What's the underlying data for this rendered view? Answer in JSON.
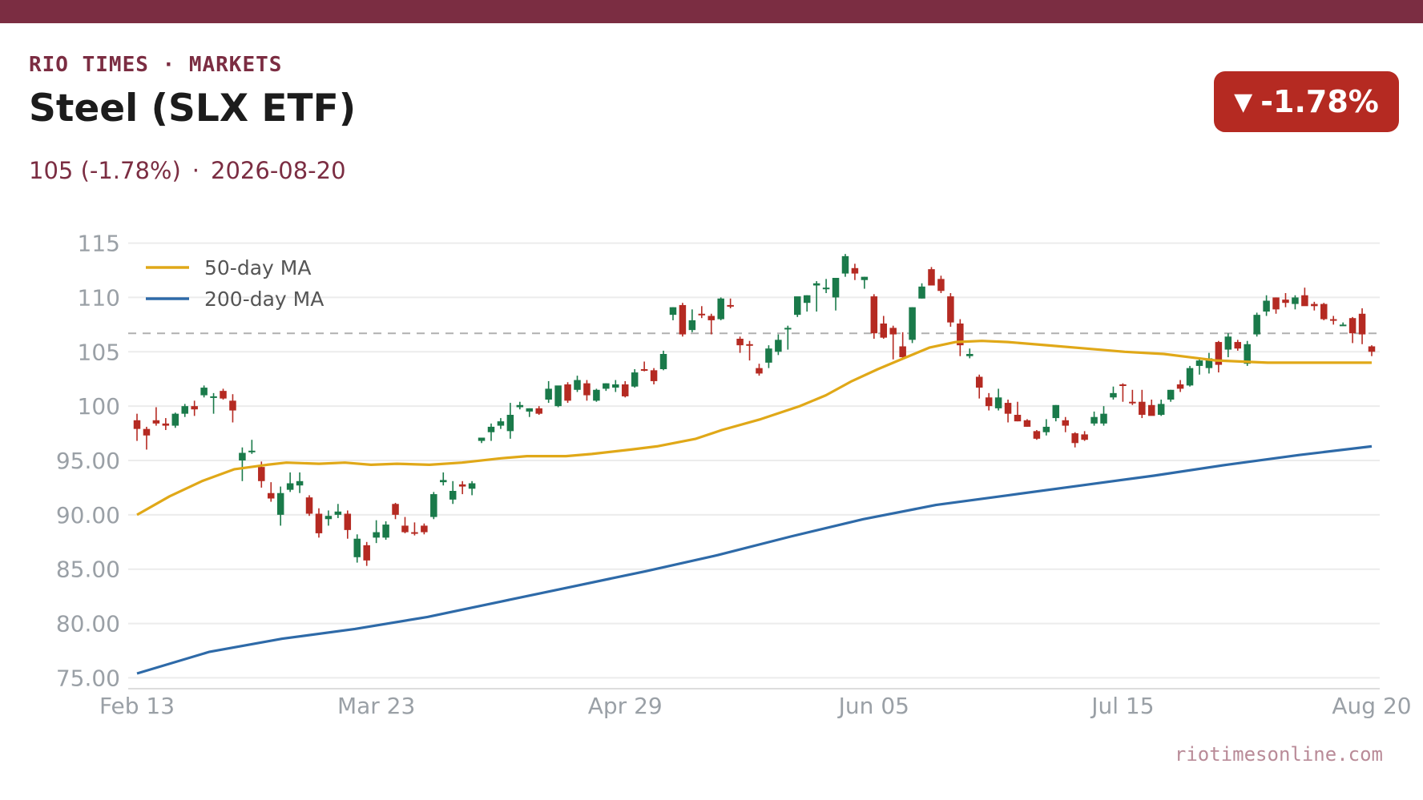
{
  "header": {
    "brand": "RIO TIMES · MARKETS",
    "title": "Steel (SLX ETF)",
    "price": "105 (-1.78%)",
    "separator": "·",
    "date": "2026-08-20",
    "change_badge": "-1.78%",
    "change_arrow": "▼"
  },
  "footer": {
    "source": "riotimesonline.com"
  },
  "colors": {
    "brand": "#7b2d42",
    "up": "#1a7a4a",
    "down": "#b52a22",
    "ma50": "#e0a818",
    "ma200": "#2e6aa8",
    "badge": "#b52a22"
  },
  "chart_data": {
    "type": "candlestick",
    "ylim": [
      74,
      116
    ],
    "y_ticks": [
      "75.00",
      "80.00",
      "85.00",
      "90.00",
      "95.00",
      "100",
      "105",
      "110",
      "115"
    ],
    "y_tick_values": [
      75,
      80,
      85,
      90,
      95,
      100,
      105,
      110,
      115
    ],
    "x_ticks": [
      "Feb 13",
      "Mar 23",
      "Apr 29",
      "Jun 05",
      "Jul 15",
      "Aug 20"
    ],
    "x_tick_index": [
      0,
      25,
      51,
      77,
      103,
      129
    ],
    "reference_line": 106.7,
    "legend": [
      {
        "name": "50-day MA",
        "color": "#e0a818"
      },
      {
        "name": "200-day MA",
        "color": "#2e6aa8"
      }
    ],
    "ohlc": [
      [
        98.7,
        99.3,
        96.8,
        97.9
      ],
      [
        97.9,
        98.1,
        96.0,
        97.3
      ],
      [
        98.7,
        99.9,
        98.2,
        98.4
      ],
      [
        98.4,
        98.9,
        97.8,
        98.2
      ],
      [
        98.2,
        99.4,
        98.0,
        99.3
      ],
      [
        99.3,
        100.2,
        99.0,
        100.0
      ],
      [
        100.0,
        100.5,
        99.1,
        99.7
      ],
      [
        101.0,
        101.9,
        100.8,
        101.7
      ],
      [
        100.9,
        101.2,
        99.3,
        100.9
      ],
      [
        101.4,
        101.6,
        100.6,
        100.7
      ],
      [
        100.5,
        101.1,
        98.5,
        99.6
      ],
      [
        95.0,
        96.2,
        93.1,
        95.7
      ],
      [
        95.8,
        96.9,
        95.6,
        95.9
      ],
      [
        94.4,
        94.9,
        92.5,
        93.1
      ],
      [
        92.0,
        93.0,
        91.2,
        91.5
      ],
      [
        90.0,
        92.6,
        89.0,
        92.0
      ],
      [
        92.3,
        93.9,
        92.1,
        92.9
      ],
      [
        92.7,
        93.9,
        92.0,
        93.1
      ],
      [
        91.6,
        91.8,
        89.9,
        90.1
      ],
      [
        90.1,
        90.6,
        87.9,
        88.3
      ],
      [
        89.6,
        90.4,
        89.0,
        89.9
      ],
      [
        90.0,
        91.0,
        89.7,
        90.3
      ],
      [
        90.1,
        90.4,
        87.8,
        88.6
      ],
      [
        86.1,
        88.2,
        85.6,
        87.8
      ],
      [
        87.2,
        87.5,
        85.3,
        85.8
      ],
      [
        87.9,
        89.5,
        87.4,
        88.4
      ],
      [
        87.9,
        89.4,
        87.7,
        89.1
      ],
      [
        91.0,
        91.1,
        89.6,
        90.0
      ],
      [
        89.0,
        89.8,
        88.3,
        88.4
      ],
      [
        88.4,
        89.3,
        88.1,
        88.3
      ],
      [
        89.0,
        89.2,
        88.2,
        88.4
      ],
      [
        89.8,
        92.1,
        89.6,
        91.9
      ],
      [
        93.0,
        93.9,
        92.7,
        93.2
      ],
      [
        91.4,
        93.1,
        91.0,
        92.2
      ],
      [
        92.8,
        93.1,
        91.9,
        92.6
      ],
      [
        92.4,
        93.1,
        91.8,
        92.9
      ],
      [
        96.8,
        97.0,
        96.6,
        97.1
      ],
      [
        97.6,
        98.4,
        96.8,
        98.1
      ],
      [
        98.2,
        98.9,
        97.9,
        98.6
      ],
      [
        97.7,
        100.3,
        97.0,
        99.2
      ],
      [
        99.9,
        100.4,
        99.7,
        100.1
      ],
      [
        99.5,
        99.8,
        99.0,
        99.8
      ],
      [
        99.8,
        100.0,
        99.2,
        99.3
      ],
      [
        100.6,
        102.3,
        100.3,
        101.6
      ],
      [
        100.0,
        101.8,
        99.9,
        101.9
      ],
      [
        102.0,
        102.2,
        100.3,
        100.5
      ],
      [
        101.5,
        102.8,
        101.3,
        102.4
      ],
      [
        102.1,
        102.4,
        100.5,
        101.0
      ],
      [
        100.5,
        101.6,
        100.4,
        101.5
      ],
      [
        101.6,
        102.1,
        101.4,
        102.1
      ],
      [
        101.7,
        102.4,
        101.3,
        102.0
      ],
      [
        102.0,
        102.3,
        100.8,
        100.9
      ],
      [
        101.8,
        103.4,
        101.7,
        103.1
      ],
      [
        103.4,
        104.1,
        103.2,
        103.3
      ],
      [
        103.3,
        103.5,
        102.0,
        102.3
      ],
      [
        103.4,
        105.1,
        103.3,
        104.8
      ],
      [
        108.4,
        109.1,
        107.9,
        109.1
      ],
      [
        109.3,
        109.5,
        106.4,
        106.6
      ],
      [
        107.0,
        108.9,
        106.8,
        107.9
      ],
      [
        108.5,
        109.2,
        108.1,
        108.4
      ],
      [
        108.3,
        108.5,
        106.6,
        107.9
      ],
      [
        108.0,
        110.0,
        107.9,
        109.9
      ],
      [
        109.3,
        109.9,
        109.0,
        109.2
      ],
      [
        106.2,
        106.4,
        104.9,
        105.6
      ],
      [
        105.7,
        106.0,
        104.2,
        105.6
      ],
      [
        103.5,
        103.9,
        102.8,
        103.0
      ],
      [
        104.0,
        105.6,
        103.5,
        105.3
      ],
      [
        105.0,
        106.6,
        104.7,
        106.1
      ],
      [
        107.1,
        107.4,
        105.2,
        107.2
      ],
      [
        108.4,
        109.9,
        108.2,
        110.1
      ],
      [
        109.5,
        110.2,
        108.7,
        110.2
      ],
      [
        111.1,
        111.5,
        108.7,
        111.3
      ],
      [
        110.9,
        111.7,
        110.4,
        110.9
      ],
      [
        110.0,
        111.7,
        108.8,
        111.8
      ],
      [
        112.2,
        114.0,
        111.9,
        113.8
      ],
      [
        112.7,
        113.1,
        111.6,
        112.2
      ],
      [
        111.6,
        111.9,
        110.8,
        111.9
      ],
      [
        110.1,
        110.3,
        106.2,
        106.7
      ],
      [
        107.6,
        108.3,
        106.2,
        106.3
      ],
      [
        107.2,
        107.4,
        104.3,
        106.6
      ],
      [
        105.5,
        106.8,
        104.3,
        104.5
      ],
      [
        106.1,
        109.1,
        105.8,
        109.1
      ],
      [
        109.9,
        111.3,
        109.9,
        111.0
      ],
      [
        112.6,
        112.8,
        111.3,
        111.1
      ],
      [
        111.7,
        112.0,
        110.4,
        110.6
      ],
      [
        110.1,
        110.4,
        107.3,
        107.7
      ],
      [
        107.6,
        108.0,
        104.6,
        105.6
      ],
      [
        104.6,
        105.3,
        104.4,
        104.8
      ],
      [
        102.7,
        102.9,
        100.7,
        101.7
      ],
      [
        100.8,
        101.2,
        99.6,
        100.0
      ],
      [
        99.8,
        101.6,
        99.6,
        100.8
      ],
      [
        100.3,
        100.6,
        98.5,
        99.3
      ],
      [
        99.2,
        100.4,
        98.6,
        98.6
      ],
      [
        98.7,
        98.8,
        98.1,
        98.1
      ],
      [
        97.7,
        97.8,
        96.9,
        97.0
      ],
      [
        97.6,
        98.8,
        97.3,
        98.1
      ],
      [
        98.9,
        100.1,
        98.6,
        100.1
      ],
      [
        98.7,
        99.0,
        97.6,
        98.2
      ],
      [
        97.5,
        97.6,
        96.2,
        96.6
      ],
      [
        97.4,
        97.7,
        96.8,
        96.9
      ],
      [
        98.4,
        99.5,
        98.2,
        99.0
      ],
      [
        98.4,
        100.0,
        98.2,
        99.3
      ],
      [
        100.8,
        101.8,
        100.6,
        101.2
      ],
      [
        102.0,
        102.1,
        100.4,
        101.9
      ],
      [
        100.4,
        101.5,
        100.1,
        100.3
      ],
      [
        100.4,
        101.5,
        98.9,
        99.2
      ],
      [
        100.1,
        100.6,
        99.2,
        99.1
      ],
      [
        99.2,
        100.6,
        99.1,
        100.2
      ],
      [
        100.6,
        101.5,
        100.4,
        101.5
      ],
      [
        102.0,
        102.4,
        101.3,
        101.6
      ],
      [
        101.9,
        103.7,
        101.8,
        103.5
      ],
      [
        103.7,
        104.5,
        102.9,
        104.2
      ],
      [
        103.5,
        104.9,
        103.0,
        104.4
      ],
      [
        105.9,
        106.0,
        103.1,
        103.8
      ],
      [
        105.2,
        106.7,
        104.5,
        106.4
      ],
      [
        105.9,
        106.1,
        105.1,
        105.3
      ],
      [
        103.9,
        106.0,
        103.7,
        105.7
      ],
      [
        106.6,
        108.6,
        106.4,
        108.4
      ],
      [
        108.7,
        110.2,
        108.3,
        109.7
      ],
      [
        110.0,
        110.0,
        108.5,
        108.9
      ],
      [
        109.8,
        110.4,
        109.1,
        109.5
      ],
      [
        109.4,
        110.2,
        108.9,
        110.0
      ],
      [
        110.2,
        110.9,
        109.3,
        109.2
      ],
      [
        109.4,
        109.6,
        108.8,
        109.2
      ],
      [
        109.4,
        109.5,
        107.9,
        108.0
      ],
      [
        108.0,
        108.3,
        107.5,
        107.9
      ],
      [
        107.5,
        107.7,
        107.4,
        107.5
      ],
      [
        108.1,
        108.2,
        105.8,
        106.7
      ],
      [
        108.5,
        109.0,
        105.7,
        106.6
      ],
      [
        105.5,
        105.6,
        104.6,
        105.0
      ]
    ],
    "ma50": [
      [
        0,
        90.0
      ],
      [
        5,
        91.7
      ],
      [
        10,
        93.1
      ],
      [
        15,
        94.2
      ],
      [
        20,
        94.6
      ],
      [
        23,
        94.8
      ],
      [
        28,
        94.7
      ],
      [
        32,
        94.8
      ],
      [
        36,
        94.6
      ],
      [
        40,
        94.7
      ],
      [
        45,
        94.6
      ],
      [
        50,
        94.8
      ],
      [
        56,
        95.2
      ],
      [
        60,
        95.4
      ],
      [
        66,
        95.4
      ],
      [
        70,
        95.6
      ],
      [
        76,
        96.0
      ],
      [
        80,
        96.3
      ],
      [
        86,
        97.0
      ],
      [
        90,
        97.8
      ],
      [
        96,
        98.8
      ],
      [
        102,
        100.0
      ],
      [
        106,
        101.0
      ],
      [
        110,
        102.3
      ],
      [
        114,
        103.4
      ],
      [
        118,
        104.4
      ],
      [
        122,
        105.4
      ],
      [
        126,
        105.9
      ],
      [
        130,
        106.0
      ],
      [
        134,
        105.9
      ],
      [
        140,
        105.6
      ],
      [
        146,
        105.3
      ],
      [
        152,
        105.0
      ],
      [
        158,
        104.8
      ],
      [
        162,
        104.5
      ],
      [
        166,
        104.2
      ],
      [
        170,
        104.1
      ],
      [
        174,
        104.0
      ],
      [
        178,
        104.0
      ],
      [
        182,
        104.0
      ],
      [
        186,
        104.0
      ],
      [
        190,
        104.0
      ]
    ],
    "ma200": [
      [
        0,
        75.4
      ],
      [
        10,
        77.4
      ],
      [
        20,
        78.6
      ],
      [
        30,
        79.5
      ],
      [
        40,
        80.6
      ],
      [
        50,
        82.0
      ],
      [
        60,
        83.4
      ],
      [
        70,
        84.8
      ],
      [
        80,
        86.3
      ],
      [
        90,
        88.0
      ],
      [
        100,
        89.6
      ],
      [
        110,
        90.9
      ],
      [
        120,
        91.8
      ],
      [
        130,
        92.7
      ],
      [
        140,
        93.6
      ],
      [
        150,
        94.6
      ],
      [
        160,
        95.5
      ],
      [
        170,
        96.3
      ]
    ]
  }
}
